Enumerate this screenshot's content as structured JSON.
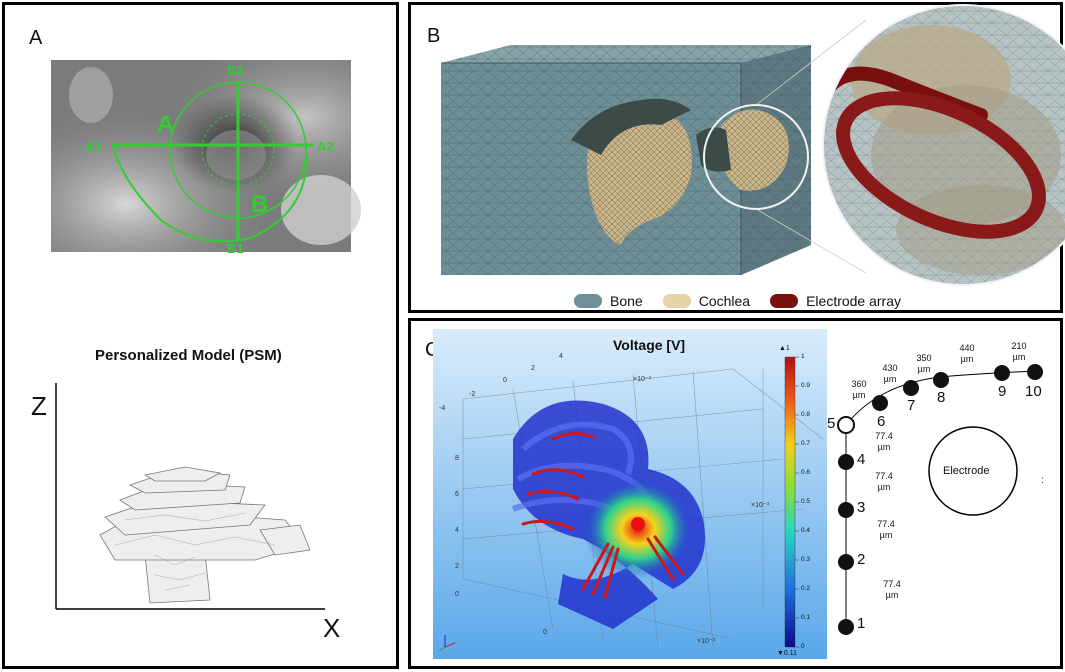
{
  "panel_a": {
    "label": "A",
    "ct_labels": {
      "a1": "A1",
      "a2": "A2",
      "b1": "B1",
      "b2": "B2",
      "a_axis": "A",
      "b_axis": "B"
    },
    "model_title": "Personalized Model (PSM)",
    "z_axis": "Z",
    "x_axis": "X"
  },
  "panel_b": {
    "label": "B",
    "legend": [
      {
        "label": "Bone",
        "color": "#6f8e96"
      },
      {
        "label": "Cochlea",
        "color": "#e6d3a6"
      },
      {
        "label": "Electrode array",
        "color": "#7a0f0f"
      }
    ]
  },
  "panel_c": {
    "label": "C",
    "plot_title": "Voltage [V]",
    "colorbar": {
      "top_marker": "▲1",
      "bottom_marker": "▼0.11",
      "ticks": [
        "1",
        "0.9",
        "0.8",
        "0.7",
        "0.6",
        "0.5",
        "0.4",
        "0.3",
        "0.2",
        "0.1",
        "0"
      ]
    },
    "axis_ticks": [
      "4",
      "2",
      "0",
      "-2",
      "-4",
      "8",
      "6",
      "4",
      "2",
      "0",
      "0"
    ],
    "axis_scale": "×10⁻³",
    "electrodes": [
      "1",
      "2",
      "3",
      "4",
      "5",
      "6",
      "7",
      "8",
      "9",
      "10"
    ],
    "spacings_vertical": [
      {
        "value": "77.4",
        "unit": "µm"
      },
      {
        "value": "77.4",
        "unit": "µm"
      },
      {
        "value": "77.4",
        "unit": "µm"
      },
      {
        "value": "77.4",
        "unit": "µm"
      }
    ],
    "spacings_curved": [
      {
        "value": "360",
        "unit": "µm"
      },
      {
        "value": "430",
        "unit": "µm"
      },
      {
        "value": "350",
        "unit": "µm"
      },
      {
        "value": "440",
        "unit": "µm"
      },
      {
        "value": "210",
        "unit": "µm"
      }
    ],
    "electrode_label": "Electrode",
    "trailing_mark": ":"
  }
}
